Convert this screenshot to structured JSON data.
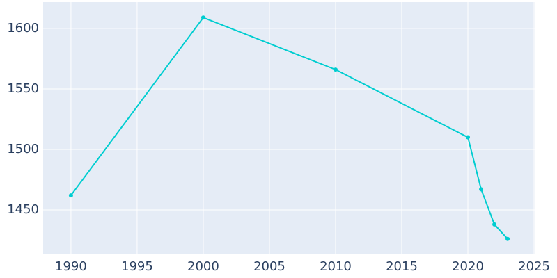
{
  "chart_data": {
    "type": "line",
    "x": [
      1990,
      2000,
      2010,
      2020,
      2021,
      2022,
      2023
    ],
    "series": [
      {
        "color": "#00cdd0",
        "values": [
          1462,
          1609,
          1566,
          1510,
          1467,
          1438,
          1426
        ]
      }
    ],
    "xlim": [
      1987.9,
      2025.05
    ],
    "xticks": [
      1990,
      1995,
      2000,
      2005,
      2010,
      2015,
      2020,
      2025
    ],
    "ylim": [
      1413.2,
      1621.8
    ],
    "yticks": [
      1450,
      1500,
      1550,
      1600
    ],
    "grid": true,
    "background": "#e5ecf6"
  }
}
